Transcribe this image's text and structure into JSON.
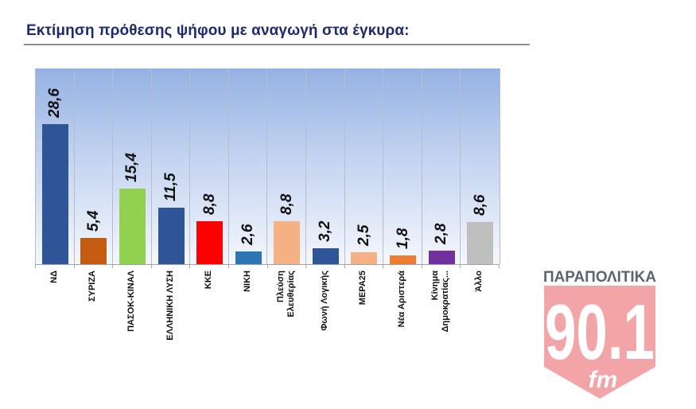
{
  "title": "Εκτίμηση πρόθεσης ψήφου με αναγωγή στα έγκυρα:",
  "chart_data": {
    "type": "bar",
    "title": "Εκτίμηση πρόθεσης ψήφου με αναγωγή στα έγκυρα:",
    "xlabel": "",
    "ylabel": "",
    "ylim": [
      0,
      40
    ],
    "grid": "vertical category separators",
    "legend": "none",
    "categories": [
      "ΝΔ",
      "ΣΥΡΙΖΑ",
      "ΠΑΣΟΚ-ΚΙΝΑΛ",
      "ΕΛΛΗΝΙΚΗ ΛΥΣΗ",
      "ΚΚΕ",
      "ΝΙΚΗ",
      "Πλεύση Ελευθερίας",
      "Φωνή Λογικής",
      "ΜΕΡΑ25",
      "Νέα Αριστερά",
      "Κίνημα Δημοκρατίας…",
      "Άλλο"
    ],
    "values": [
      28.6,
      5.4,
      15.4,
      11.5,
      8.8,
      2.6,
      8.8,
      3.2,
      2.5,
      1.8,
      2.8,
      8.6
    ],
    "value_labels": [
      "28,6",
      "5,4",
      "15,4",
      "11,5",
      "8,8",
      "2,6",
      "8,8",
      "3,2",
      "2,5",
      "1,8",
      "2,8",
      "8,6"
    ],
    "colors": [
      "#2e5597",
      "#c55a11",
      "#92d050",
      "#2e5597",
      "#ff0000",
      "#2e75b6",
      "#f4b183",
      "#2e5597",
      "#f4b183",
      "#ed7d31",
      "#7030a0",
      "#bfbfbf"
    ]
  },
  "labels": {
    "c0": [
      "ΝΔ"
    ],
    "c1": [
      "ΣΥΡΙΖΑ"
    ],
    "c2": [
      "ΠΑΣΟΚ-ΚΙΝΑΛ"
    ],
    "c3": [
      "ΕΛΛΗΝΙΚΗ ΛΥΣΗ"
    ],
    "c4": [
      "ΚΚΕ"
    ],
    "c5": [
      "ΝΙΚΗ"
    ],
    "c6": [
      "Πλεύση",
      "Ελευθερίας"
    ],
    "c7": [
      "Φωνή Λογικής"
    ],
    "c8": [
      "ΜΕΡΑ25"
    ],
    "c9": [
      "Νέα Αριστερά"
    ],
    "c10": [
      "Κίνημα",
      "Δημοκρατίας..."
    ],
    "c11": [
      "Άλλο"
    ]
  },
  "logo": {
    "brand": "ΠΑΡΑΠΟΛΙΤΙΚΑ",
    "frequency": "90.1",
    "band": "fm",
    "brand_color": "#5b6472",
    "shield_color": "#f08a8e"
  }
}
